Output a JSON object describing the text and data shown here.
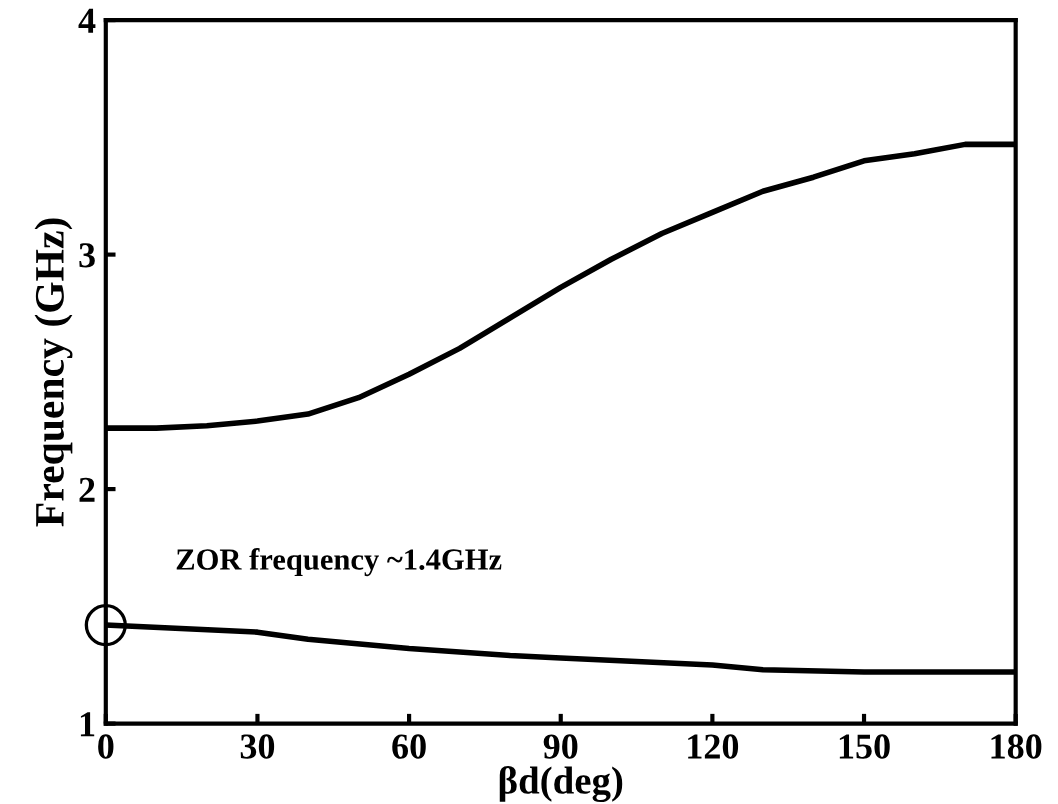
{
  "chart_data": {
    "type": "line",
    "xlabel": "βd(deg)",
    "ylabel": "Frequency (GHz)",
    "xlim": [
      0,
      180
    ],
    "xticks": [
      0,
      30,
      60,
      90,
      120,
      150,
      180
    ],
    "ylim": [
      1,
      4
    ],
    "yticks": [
      1,
      2,
      3,
      4
    ],
    "grid": false,
    "legend": false,
    "marker": "none",
    "line_style": "solid",
    "series": [
      {
        "color": "#000000",
        "x": [
          0,
          10,
          20,
          30,
          40,
          50,
          60,
          70,
          80,
          90,
          100,
          110,
          120,
          130,
          140,
          150,
          160,
          170,
          180
        ],
        "values": [
          2.26,
          2.26,
          2.27,
          2.29,
          2.32,
          2.39,
          2.49,
          2.6,
          2.73,
          2.86,
          2.98,
          3.09,
          3.18,
          3.27,
          3.33,
          3.4,
          3.43,
          3.47,
          3.47
        ]
      },
      {
        "color": "#000000",
        "x": [
          0,
          30,
          40,
          60,
          80,
          90,
          120,
          130,
          150,
          180
        ],
        "values": [
          1.42,
          1.39,
          1.36,
          1.32,
          1.29,
          1.28,
          1.25,
          1.23,
          1.22,
          1.22
        ]
      }
    ],
    "annotations": [
      {
        "text": "ZOR frequency ~1.4GHz",
        "x": 0,
        "y": 1.42
      }
    ]
  }
}
